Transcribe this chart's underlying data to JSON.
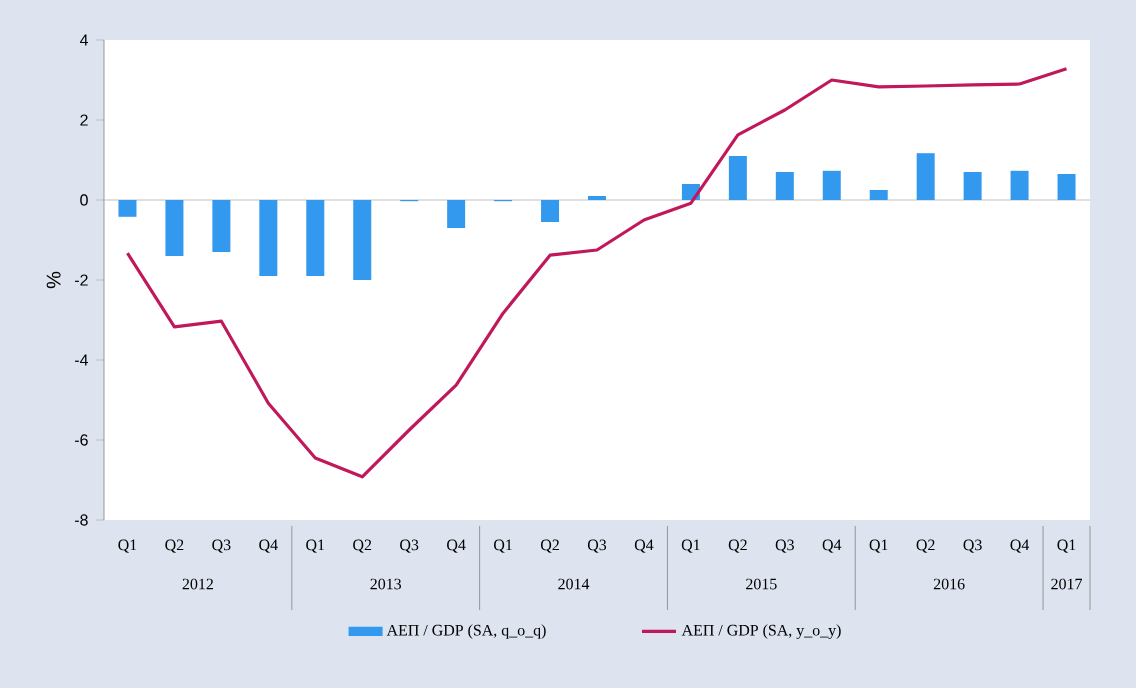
{
  "chart_data": {
    "type": "bar",
    "ylabel": "%",
    "categories": [
      "Q1",
      "Q2",
      "Q3",
      "Q4",
      "Q1",
      "Q2",
      "Q3",
      "Q4",
      "Q1",
      "Q2",
      "Q3",
      "Q4",
      "Q1",
      "Q2",
      "Q3",
      "Q4",
      "Q1",
      "Q2",
      "Q3",
      "Q4",
      "Q1"
    ],
    "annotations": [
      "2012",
      "2013",
      "2014",
      "2015",
      "2016",
      "2017"
    ],
    "series": [
      {
        "name": "ΑΕΠ / GDP (SA, q_o_q)",
        "color": "#3399ee",
        "values": [
          -0.42,
          -1.4,
          -1.3,
          -1.9,
          -1.9,
          -2.0,
          -0.03,
          -0.7,
          -0.03,
          -0.55,
          0.1,
          0,
          0.4,
          1.1,
          0.7,
          0.73,
          0.25,
          1.17,
          0.7,
          0.73,
          0.65
        ]
      },
      {
        "name": "ΑΕΠ / GDP (SA, y_o_y)",
        "type": "line",
        "color": "#c0185a",
        "values": [
          -1.33,
          -3.17,
          -3.03,
          -5.08,
          -6.45,
          -6.92,
          -5.75,
          -4.63,
          -2.83,
          -1.38,
          -1.25,
          -0.5,
          -0.08,
          1.63,
          2.25,
          3.0,
          2.83,
          2.85,
          2.88,
          2.9,
          3.28
        ]
      }
    ],
    "ylim": [
      -8,
      4
    ],
    "yticks": [
      -8,
      -6,
      -4,
      -2,
      0,
      2,
      4
    ],
    "ref_lines": [
      {
        "axis": "y",
        "value": 0,
        "color": "#b0b0b0"
      }
    ],
    "grid": false,
    "legend": "bottom"
  }
}
